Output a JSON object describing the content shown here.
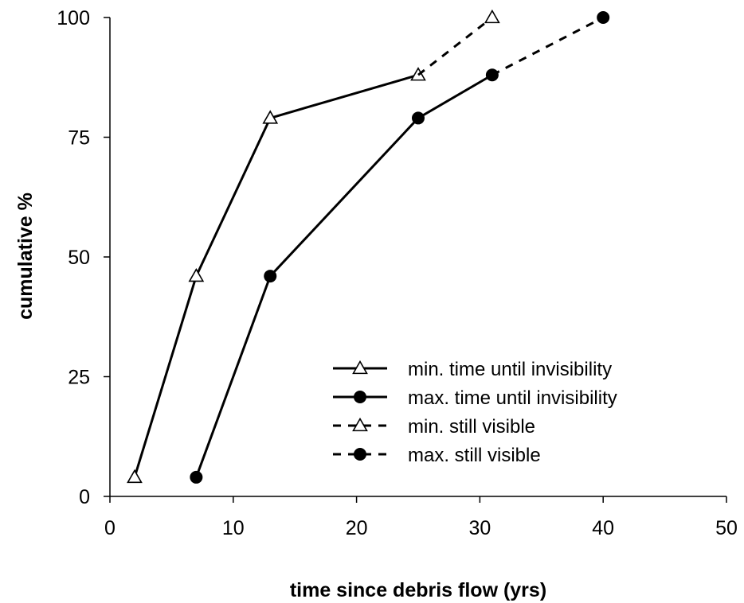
{
  "chart_data": {
    "type": "line",
    "title": "",
    "xlabel": "time since debris flow (yrs)",
    "ylabel": "cumulative %",
    "xlim": [
      0,
      50
    ],
    "ylim": [
      0,
      100
    ],
    "xticks": [
      0,
      10,
      20,
      30,
      40,
      50
    ],
    "yticks": [
      0,
      25,
      50,
      75,
      100
    ],
    "grid": false,
    "legend_position": "bottom-right",
    "series": [
      {
        "name": "min. time until invisibility",
        "style": "solid",
        "marker": "open-triangle",
        "x": [
          2,
          7,
          13,
          25
        ],
        "y": [
          4,
          46,
          79,
          88
        ]
      },
      {
        "name": "max. time until invisibility",
        "style": "solid",
        "marker": "filled-circle",
        "x": [
          7,
          13,
          25,
          31
        ],
        "y": [
          4,
          46,
          79,
          88
        ]
      },
      {
        "name": "min. still visible",
        "style": "dashed",
        "marker": "open-triangle",
        "x": [
          25,
          31
        ],
        "y": [
          88,
          100
        ],
        "legend_marker_only_x": [
          31
        ],
        "marker_x": [
          31
        ],
        "marker_y": [
          100
        ]
      },
      {
        "name": "max. still visible",
        "style": "dashed",
        "marker": "filled-circle",
        "x": [
          31,
          40
        ],
        "y": [
          88,
          100
        ],
        "marker_x": [
          40
        ],
        "marker_y": [
          100
        ]
      }
    ]
  }
}
